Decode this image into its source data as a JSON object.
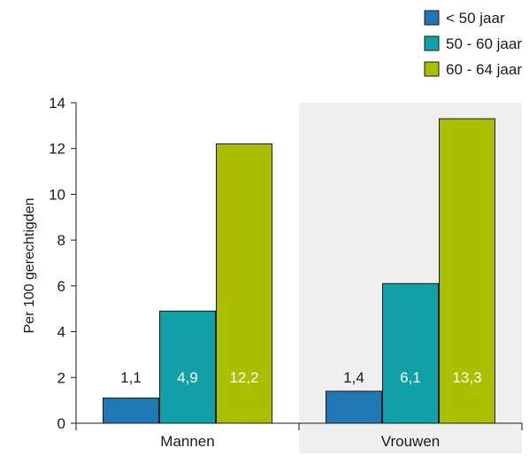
{
  "chart_data": {
    "type": "bar",
    "title": "",
    "xlabel": "",
    "ylabel": "Per 100 gerechtigden",
    "ylim": [
      0,
      14
    ],
    "yticks": [
      0,
      2,
      4,
      6,
      8,
      10,
      12,
      14
    ],
    "grid": false,
    "legend_position": "top-right",
    "categories": [
      "Mannen",
      "Vrouwen"
    ],
    "category_shading": [
      false,
      true
    ],
    "shading_color": "#f0f0f0",
    "series": [
      {
        "name": "< 50 jaar",
        "color": "#1f78b4",
        "label_color": "#1a1a1a",
        "label_inside": false,
        "values": [
          1.1,
          1.4
        ],
        "labels": [
          "1,1",
          "1,4"
        ]
      },
      {
        "name": "50 - 60 jaar",
        "color": "#12a0a8",
        "label_color": "#ffffff",
        "label_inside": true,
        "values": [
          4.9,
          6.1
        ],
        "labels": [
          "4,9",
          "6,1"
        ]
      },
      {
        "name": "60 - 64 jaar",
        "color": "#a9bf00",
        "label_color": "#ffffff",
        "label_inside": true,
        "values": [
          12.2,
          13.3
        ],
        "labels": [
          "12,2",
          "13,3"
        ]
      }
    ]
  }
}
